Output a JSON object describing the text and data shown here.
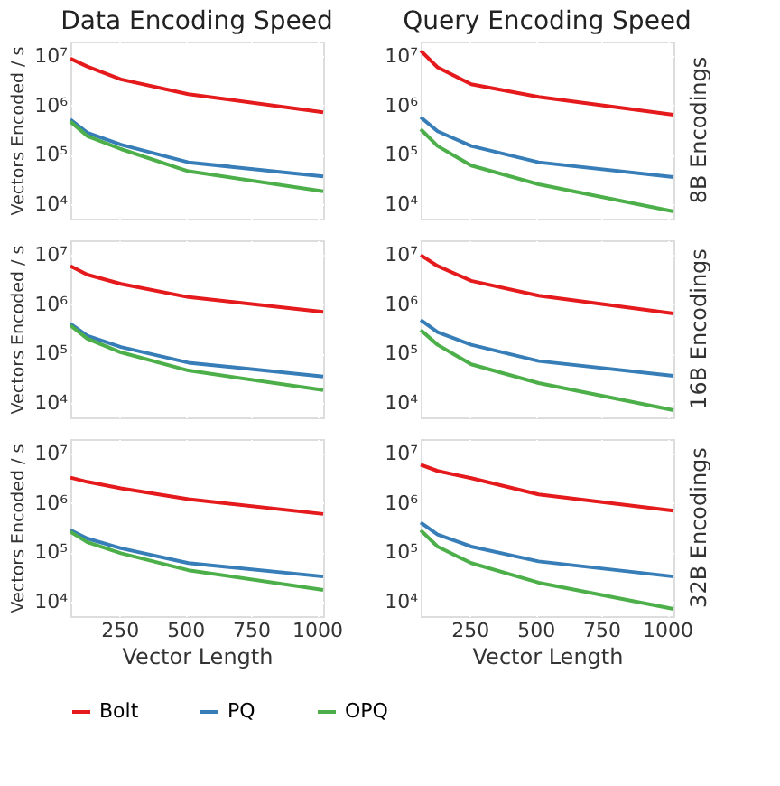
{
  "chart_data": [
    {
      "type": "line",
      "title": "Data Encoding Speed",
      "ylabel": "Vectors Encoded / s",
      "log": "y",
      "grid": true,
      "legend": "bottom",
      "tick_labels": "y",
      "xlim": [
        64,
        1024
      ],
      "ylim": [
        5000,
        20000000
      ],
      "xticks": [
        {
          "value": 250,
          "label": null
        },
        {
          "value": 500,
          "label": null
        },
        {
          "value": 750,
          "label": null
        },
        {
          "value": 1000,
          "label": null
        }
      ],
      "yticks": [
        {
          "value": 10000,
          "label": "10⁴"
        },
        {
          "value": 100000,
          "label": "10⁵"
        },
        {
          "value": 1000000,
          "label": "10⁶"
        },
        {
          "value": 10000000,
          "label": "10⁷"
        }
      ],
      "x": [
        64,
        128,
        256,
        512,
        1024
      ],
      "series": [
        {
          "name": "Bolt",
          "color": "#e41a1c",
          "values": [
            9000000,
            6200000,
            3400000,
            1700000,
            730000
          ]
        },
        {
          "name": "PQ",
          "color": "#377eb8",
          "values": [
            520000,
            280000,
            160000,
            70000,
            36000
          ]
        },
        {
          "name": "OPQ",
          "color": "#4daf4a",
          "values": [
            470000,
            240000,
            130000,
            46000,
            18000
          ]
        }
      ]
    },
    {
      "type": "line",
      "title": "Query Encoding Speed",
      "y2label": "8B Encodings",
      "log": "y",
      "grid": true,
      "legend": "bottom",
      "tick_labels": "y",
      "xlim": [
        64,
        1024
      ],
      "ylim": [
        5000,
        20000000
      ],
      "xticks": [
        {
          "value": 250,
          "label": null
        },
        {
          "value": 500,
          "label": null
        },
        {
          "value": 750,
          "label": null
        },
        {
          "value": 1000,
          "label": null
        }
      ],
      "yticks": [
        {
          "value": 10000,
          "label": "10⁴"
        },
        {
          "value": 100000,
          "label": "10⁵"
        },
        {
          "value": 1000000,
          "label": "10⁶"
        },
        {
          "value": 10000000,
          "label": "10⁷"
        }
      ],
      "x": [
        64,
        128,
        256,
        512,
        1024
      ],
      "series": [
        {
          "name": "Bolt",
          "color": "#e41a1c",
          "values": [
            13000000,
            6000000,
            2700000,
            1500000,
            650000
          ]
        },
        {
          "name": "PQ",
          "color": "#377eb8",
          "values": [
            580000,
            300000,
            150000,
            70000,
            35000
          ]
        },
        {
          "name": "OPQ",
          "color": "#4daf4a",
          "values": [
            330000,
            150000,
            60000,
            25000,
            7000
          ]
        }
      ]
    },
    {
      "type": "line",
      "ylabel": "Vectors Encoded / s",
      "log": "y",
      "grid": true,
      "legend": "bottom",
      "tick_labels": "y",
      "xlim": [
        64,
        1024
      ],
      "ylim": [
        5000,
        20000000
      ],
      "xticks": [
        {
          "value": 250,
          "label": null
        },
        {
          "value": 500,
          "label": null
        },
        {
          "value": 750,
          "label": null
        },
        {
          "value": 1000,
          "label": null
        }
      ],
      "yticks": [
        {
          "value": 10000,
          "label": "10⁴"
        },
        {
          "value": 100000,
          "label": "10⁵"
        },
        {
          "value": 1000000,
          "label": "10⁶"
        },
        {
          "value": 10000000,
          "label": "10⁷"
        }
      ],
      "x": [
        64,
        128,
        256,
        512,
        1024
      ],
      "series": [
        {
          "name": "Bolt",
          "color": "#e41a1c",
          "values": [
            6000000,
            4000000,
            2600000,
            1400000,
            700000
          ]
        },
        {
          "name": "PQ",
          "color": "#377eb8",
          "values": [
            400000,
            230000,
            135000,
            65000,
            34000
          ]
        },
        {
          "name": "OPQ",
          "color": "#4daf4a",
          "values": [
            370000,
            200000,
            105000,
            45000,
            18000
          ]
        }
      ]
    },
    {
      "type": "line",
      "y2label": "16B Encodings",
      "log": "y",
      "grid": true,
      "legend": "bottom",
      "tick_labels": "y",
      "xlim": [
        64,
        1024
      ],
      "ylim": [
        5000,
        20000000
      ],
      "xticks": [
        {
          "value": 250,
          "label": null
        },
        {
          "value": 500,
          "label": null
        },
        {
          "value": 750,
          "label": null
        },
        {
          "value": 1000,
          "label": null
        }
      ],
      "yticks": [
        {
          "value": 10000,
          "label": "10⁴"
        },
        {
          "value": 100000,
          "label": "10⁵"
        },
        {
          "value": 1000000,
          "label": "10⁶"
        },
        {
          "value": 10000000,
          "label": "10⁷"
        }
      ],
      "x": [
        64,
        128,
        256,
        512,
        1024
      ],
      "series": [
        {
          "name": "Bolt",
          "color": "#e41a1c",
          "values": [
            10000000,
            6000000,
            3000000,
            1500000,
            650000
          ]
        },
        {
          "name": "PQ",
          "color": "#377eb8",
          "values": [
            480000,
            270000,
            150000,
            70000,
            35000
          ]
        },
        {
          "name": "OPQ",
          "color": "#4daf4a",
          "values": [
            300000,
            150000,
            60000,
            25000,
            7000
          ]
        }
      ]
    },
    {
      "type": "line",
      "ylabel": "Vectors Encoded / s",
      "xlabel": "Vector Length",
      "log": "y",
      "grid": true,
      "legend": "bottom",
      "xlim": [
        64,
        1024
      ],
      "ylim": [
        5000,
        20000000
      ],
      "xticks": [
        250,
        500,
        750,
        1000
      ],
      "yticks": [
        {
          "value": 10000,
          "label": "10⁴"
        },
        {
          "value": 100000,
          "label": "10⁵"
        },
        {
          "value": 1000000,
          "label": "10⁶"
        },
        {
          "value": 10000000,
          "label": "10⁷"
        }
      ],
      "x": [
        64,
        128,
        256,
        512,
        1024
      ],
      "series": [
        {
          "name": "Bolt",
          "color": "#e41a1c",
          "values": [
            3300000,
            2700000,
            2000000,
            1200000,
            600000
          ]
        },
        {
          "name": "PQ",
          "color": "#377eb8",
          "values": [
            280000,
            190000,
            120000,
            60000,
            32000
          ]
        },
        {
          "name": "OPQ",
          "color": "#4daf4a",
          "values": [
            260000,
            160000,
            95000,
            43000,
            17000
          ]
        }
      ]
    },
    {
      "type": "line",
      "xlabel": "Vector Length",
      "y2label": "32B Encodings",
      "log": "y",
      "grid": true,
      "legend": "bottom",
      "xlim": [
        64,
        1024
      ],
      "ylim": [
        5000,
        20000000
      ],
      "xticks": [
        250,
        500,
        750,
        1000
      ],
      "yticks": [
        {
          "value": 10000,
          "label": "10⁴"
        },
        {
          "value": 100000,
          "label": "10⁵"
        },
        {
          "value": 1000000,
          "label": "10⁶"
        },
        {
          "value": 10000000,
          "label": "10⁷"
        }
      ],
      "x": [
        64,
        128,
        256,
        512,
        1024
      ],
      "series": [
        {
          "name": "Bolt",
          "color": "#e41a1c",
          "values": [
            6000000,
            4500000,
            3200000,
            1500000,
            700000
          ]
        },
        {
          "name": "PQ",
          "color": "#377eb8",
          "values": [
            400000,
            230000,
            130000,
            65000,
            32000
          ]
        },
        {
          "name": "OPQ",
          "color": "#4daf4a",
          "values": [
            280000,
            130000,
            60000,
            24000,
            7000
          ]
        }
      ]
    }
  ]
}
